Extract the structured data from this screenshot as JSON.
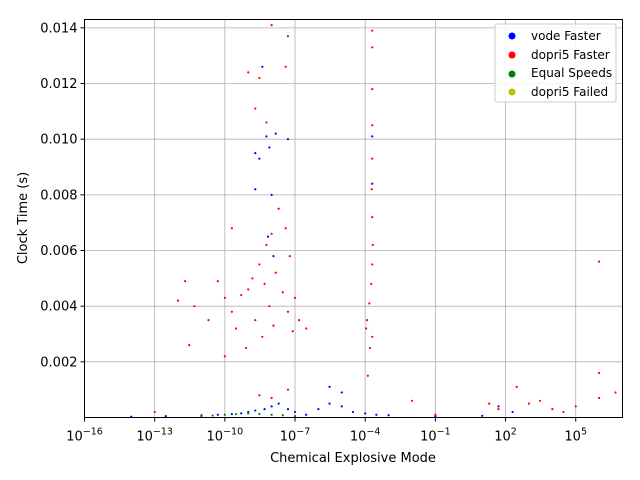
{
  "chart_data": {
    "type": "scatter",
    "title": "",
    "xlabel": "Chemical Explosive Mode",
    "ylabel": "Clock Time (s)",
    "x_scale": "log",
    "xlim": [
      1e-16,
      10000000.0
    ],
    "ylim": [
      0,
      0.0143
    ],
    "grid": true,
    "legend_position": "top-right",
    "x_ticks": [
      {
        "value": 1e-16,
        "base": "10",
        "exp": "−16"
      },
      {
        "value": 1e-13,
        "base": "10",
        "exp": "−13"
      },
      {
        "value": 1e-10,
        "base": "10",
        "exp": "−10"
      },
      {
        "value": 1e-07,
        "base": "10",
        "exp": "−7"
      },
      {
        "value": 0.0001,
        "base": "10",
        "exp": "−4"
      },
      {
        "value": 0.1,
        "base": "10",
        "exp": "−1"
      },
      {
        "value": 100.0,
        "base": "10",
        "exp": "2"
      },
      {
        "value": 100000.0,
        "base": "10",
        "exp": "5"
      }
    ],
    "y_ticks": [
      {
        "value": 0.002,
        "label": "0.002"
      },
      {
        "value": 0.004,
        "label": "0.004"
      },
      {
        "value": 0.006,
        "label": "0.006"
      },
      {
        "value": 0.008,
        "label": "0.008"
      },
      {
        "value": 0.01,
        "label": "0.010"
      },
      {
        "value": 0.012,
        "label": "0.012"
      },
      {
        "value": 0.014,
        "label": "0.014"
      }
    ],
    "series": [
      {
        "name": "vode Faster",
        "color": "#0000ff",
        "points": [
          [
            1e-14,
            3e-05
          ],
          [
            3e-13,
            5e-05
          ],
          [
            1e-11,
            8e-05
          ],
          [
            5e-11,
            0.0001
          ],
          [
            2e-10,
            0.00012
          ],
          [
            5e-10,
            0.00015
          ],
          [
            1e-09,
            0.0002
          ],
          [
            2e-09,
            0.00025
          ],
          [
            5e-09,
            0.0003
          ],
          [
            1e-08,
            0.0004
          ],
          [
            2e-08,
            0.0005
          ],
          [
            5e-08,
            0.0003
          ],
          [
            1e-07,
            0.0002
          ],
          [
            3e-07,
            0.0001
          ],
          [
            1e-06,
            0.0003
          ],
          [
            3e-06,
            0.0005
          ],
          [
            1e-05,
            0.0004
          ],
          [
            3e-05,
            0.0002
          ],
          [
            0.0001,
            0.00015
          ],
          [
            0.0003,
            0.0001
          ],
          [
            0.001,
            8e-05
          ],
          [
            0.1,
            5e-05
          ],
          [
            10,
            6e-05
          ],
          [
            50,
            0.0004
          ],
          [
            200,
            0.0002
          ],
          [
            3e-06,
            0.0011
          ],
          [
            1e-05,
            0.0009
          ],
          [
            2e-09,
            0.0095
          ],
          [
            6e-09,
            0.0101
          ],
          [
            1.5e-08,
            0.0102
          ],
          [
            8e-09,
            0.0097
          ],
          [
            3e-09,
            0.0093
          ],
          [
            0.0002,
            0.0101
          ],
          [
            0.0002,
            0.0084
          ],
          [
            4e-09,
            0.0126
          ],
          [
            5e-08,
            0.01
          ],
          [
            2e-09,
            0.0082
          ],
          [
            1e-08,
            0.008
          ],
          [
            7e-09,
            0.0065
          ],
          [
            1.2e-08,
            0.0058
          ]
        ]
      },
      {
        "name": "dopri5 Faster",
        "color": "#ff0000",
        "points": [
          [
            1e-13,
            0.0002
          ],
          [
            1e-12,
            0.0042
          ],
          [
            2e-12,
            0.0049
          ],
          [
            3e-12,
            0.0026
          ],
          [
            5e-12,
            0.004
          ],
          [
            2e-11,
            0.0035
          ],
          [
            5e-11,
            0.0049
          ],
          [
            1e-10,
            0.0043
          ],
          [
            2e-10,
            0.0038
          ],
          [
            3e-10,
            0.0032
          ],
          [
            5e-10,
            0.0044
          ],
          [
            8e-10,
            0.0025
          ],
          [
            1e-09,
            0.0046
          ],
          [
            1.5e-09,
            0.005
          ],
          [
            2e-09,
            0.0035
          ],
          [
            3e-09,
            0.0055
          ],
          [
            4e-09,
            0.0029
          ],
          [
            5e-09,
            0.0048
          ],
          [
            6e-09,
            0.0062
          ],
          [
            8e-09,
            0.004
          ],
          [
            1e-08,
            0.0066
          ],
          [
            1.2e-08,
            0.0033
          ],
          [
            1.5e-08,
            0.0052
          ],
          [
            2e-08,
            0.0075
          ],
          [
            3e-08,
            0.0045
          ],
          [
            4e-08,
            0.0068
          ],
          [
            5e-08,
            0.0038
          ],
          [
            6e-08,
            0.0058
          ],
          [
            8e-08,
            0.0031
          ],
          [
            1e-07,
            0.0043
          ],
          [
            1.5e-07,
            0.0035
          ],
          [
            3e-07,
            0.0032
          ],
          [
            1e-09,
            0.0124
          ],
          [
            3e-09,
            0.0122
          ],
          [
            1e-08,
            0.0141
          ],
          [
            2e-09,
            0.0111
          ],
          [
            5e-08,
            0.0137
          ],
          [
            4e-08,
            0.0126
          ],
          [
            6e-09,
            0.0106
          ],
          [
            2e-10,
            0.0068
          ],
          [
            1e-10,
            0.0022
          ],
          [
            3e-09,
            0.0008
          ],
          [
            1e-08,
            0.0007
          ],
          [
            5e-08,
            0.001
          ],
          [
            0.00012,
            0.0035
          ],
          [
            0.00015,
            0.0041
          ],
          [
            0.00018,
            0.0048
          ],
          [
            0.0002,
            0.0055
          ],
          [
            0.00021,
            0.0062
          ],
          [
            0.0002,
            0.0072
          ],
          [
            0.00019,
            0.0082
          ],
          [
            0.0002,
            0.0093
          ],
          [
            0.0002,
            0.0105
          ],
          [
            0.0002,
            0.0118
          ],
          [
            0.0002,
            0.0133
          ],
          [
            0.0002,
            0.0139
          ],
          [
            0.00011,
            0.0032
          ],
          [
            0.00013,
            0.0015
          ],
          [
            0.00016,
            0.0025
          ],
          [
            0.0002,
            0.0029
          ],
          [
            0.01,
            0.0006
          ],
          [
            0.1,
            0.0001
          ],
          [
            20,
            0.0005
          ],
          [
            50,
            0.0003
          ],
          [
            300,
            0.0011
          ],
          [
            1000.0,
            0.0005
          ],
          [
            3000.0,
            0.0006
          ],
          [
            10000.0,
            0.0003
          ],
          [
            30000.0,
            0.0002
          ],
          [
            100000.0,
            0.0004
          ],
          [
            1000000.0,
            0.0016
          ],
          [
            1000000.0,
            0.0056
          ],
          [
            1000000.0,
            0.0007
          ],
          [
            5000000.0,
            0.0009
          ]
        ]
      },
      {
        "name": "Equal Speeds",
        "color": "#008000",
        "points": [
          [
            1e-11,
            5e-05
          ],
          [
            3e-11,
            7e-05
          ],
          [
            1e-10,
            0.0001
          ],
          [
            3e-10,
            0.00012
          ],
          [
            1e-09,
            0.00015
          ],
          [
            3e-09,
            0.00013
          ],
          [
            1e-08,
            0.0001
          ],
          [
            3e-08,
            8e-05
          ],
          [
            1e-07,
            5e-05
          ]
        ]
      },
      {
        "name": "dopri5 Failed",
        "color": "#bfbf00",
        "points": []
      }
    ]
  }
}
